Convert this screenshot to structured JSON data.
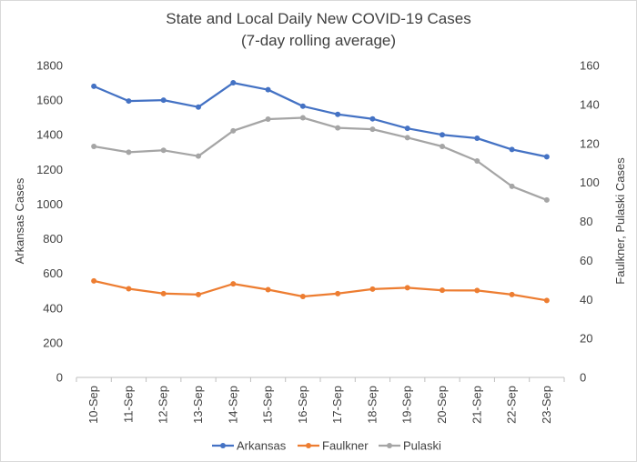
{
  "chart_data": {
    "type": "line",
    "title": "State and Local Daily New COVID-19 Cases",
    "subtitle": "(7-day rolling average)",
    "categories": [
      "10-Sep",
      "11-Sep",
      "12-Sep",
      "13-Sep",
      "14-Sep",
      "15-Sep",
      "16-Sep",
      "17-Sep",
      "18-Sep",
      "19-Sep",
      "20-Sep",
      "21-Sep",
      "22-Sep",
      "23-Sep"
    ],
    "ylabel_left": "Arkansas Cases",
    "ylabel_right": "Faulkner, Pulaski Cases",
    "ylim_left": [
      0,
      1800
    ],
    "yticks_left": [
      0,
      200,
      400,
      600,
      800,
      1000,
      1200,
      1400,
      1600,
      1800
    ],
    "ylim_right": [
      0,
      160
    ],
    "yticks_right": [
      0,
      20,
      40,
      60,
      80,
      100,
      120,
      140,
      160
    ],
    "grid": false,
    "legend_position": "bottom",
    "series": [
      {
        "name": "Arkansas",
        "axis": "left",
        "color": "#4472c4",
        "values": [
          1680,
          1595,
          1600,
          1560,
          1700,
          1660,
          1565,
          1518,
          1492,
          1437,
          1400,
          1380,
          1315,
          1273
        ]
      },
      {
        "name": "Faulkner",
        "axis": "right",
        "color": "#ed7d31",
        "values": [
          49.5,
          45.5,
          43,
          42.5,
          48,
          45,
          41.5,
          43,
          45.3,
          46,
          44.7,
          44.6,
          42.5,
          39.5
        ]
      },
      {
        "name": "Pulaski",
        "axis": "right",
        "color": "#a5a5a5",
        "values": [
          118.5,
          115.5,
          116.5,
          113.5,
          126.5,
          132.5,
          133.2,
          128,
          127.3,
          123,
          118.5,
          111,
          98,
          91
        ]
      }
    ]
  }
}
